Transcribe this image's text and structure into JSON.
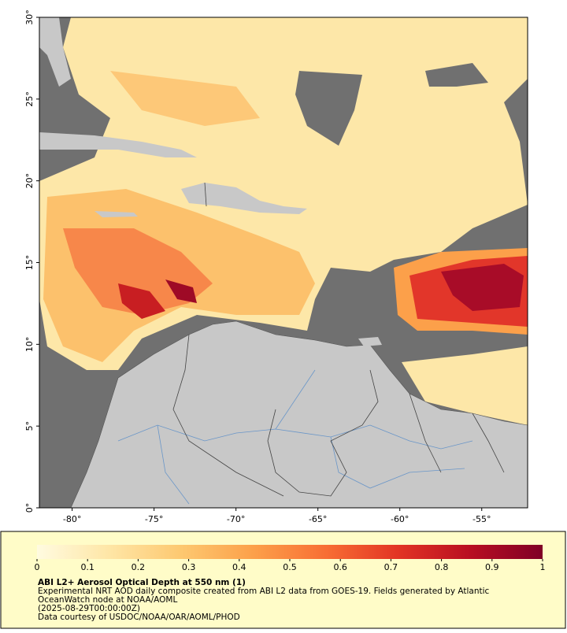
{
  "map": {
    "xlim": [
      -82,
      -52.2
    ],
    "ylim": [
      0,
      30
    ],
    "xticks": [
      {
        "value": -80,
        "label": "-80°"
      },
      {
        "value": -75,
        "label": "-75°"
      },
      {
        "value": -70,
        "label": "-70°"
      },
      {
        "value": -65,
        "label": "-65°"
      },
      {
        "value": -60,
        "label": "-60°"
      },
      {
        "value": -55,
        "label": "-55°"
      }
    ],
    "yticks": [
      {
        "value": 0,
        "label": "0°"
      },
      {
        "value": 5,
        "label": "5°"
      },
      {
        "value": 10,
        "label": "10°"
      },
      {
        "value": 15,
        "label": "15°"
      },
      {
        "value": 20,
        "label": "20°"
      },
      {
        "value": 25,
        "label": "25°"
      },
      {
        "value": 30,
        "label": "30°"
      }
    ]
  },
  "colorbar": {
    "range": [
      0,
      1
    ],
    "ticks": [
      0,
      0.1,
      0.2,
      0.3,
      0.4,
      0.5,
      0.6,
      0.7,
      0.8,
      0.9,
      1
    ],
    "colors": [
      "#fffbe0",
      "#fee6a6",
      "#fdc870",
      "#fca04a",
      "#f86e34",
      "#e23424",
      "#b80e22",
      "#800026"
    ]
  },
  "caption": {
    "title": "ABI L2+ Aerosol Optical Depth at 550 nm (1)",
    "lines": [
      "Experimental NRT AOD daily composite created from ABI L2 data from GOES-19. Fields generated by Atlantic",
      "OceanWatch node at NOAA/AOML",
      "(2025-08-29T00:00:00Z)",
      "Data courtesy of USDOC/NOAA/OAR/AOML/PHOD"
    ]
  }
}
